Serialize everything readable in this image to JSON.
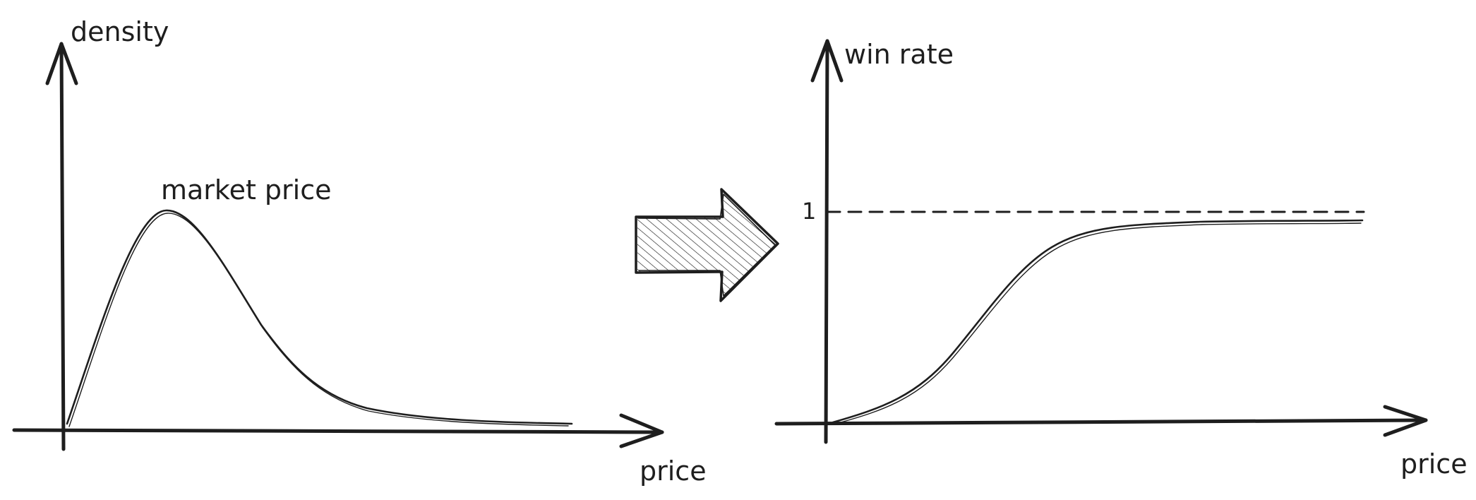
{
  "left_chart": {
    "y_label": "density",
    "x_label": "price",
    "peak_label": "market price"
  },
  "right_chart": {
    "y_label": "win rate",
    "x_label": "price",
    "tick_one": "1"
  },
  "arrow": {
    "icon": "right-arrow-icon"
  }
}
